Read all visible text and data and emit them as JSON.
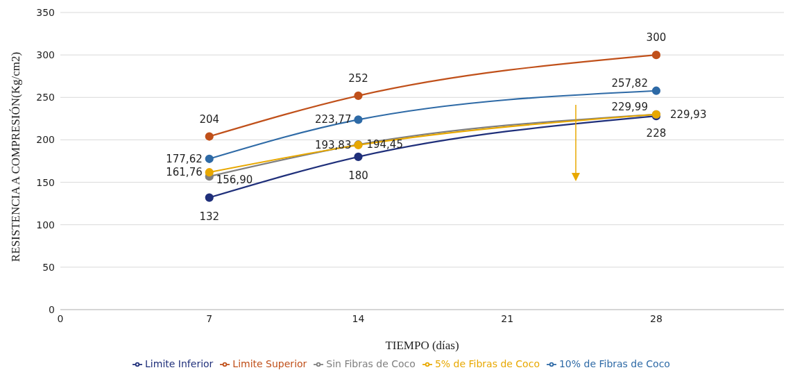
{
  "chart_data": {
    "type": "line",
    "xlabel": "TIEMPO (días)",
    "ylabel": "RESISTENCIA A COMPRESIÓN(Kg/cm2)",
    "x": [
      7,
      14,
      28
    ],
    "xlim": [
      0,
      34
    ],
    "xticks": [
      0,
      7,
      14,
      21,
      28
    ],
    "ylim": [
      0,
      350
    ],
    "yticks": [
      0,
      50,
      100,
      150,
      200,
      250,
      300,
      350
    ],
    "grid": "y",
    "legend": "bottom",
    "marker": "circle",
    "series": [
      {
        "name": "Limite Inferior",
        "color": "#1f2f7a",
        "values": [
          132,
          180,
          228
        ],
        "value_labels": [
          "132",
          "180",
          "228"
        ]
      },
      {
        "name": "Limite Superior",
        "color": "#c0501a",
        "values": [
          204,
          252,
          300
        ],
        "value_labels": [
          "204",
          "252",
          "300"
        ]
      },
      {
        "name": "Sin Fibras de Coco",
        "color": "#7f7f7f",
        "values": [
          156.9,
          194.45,
          229.93
        ],
        "value_labels": [
          "156,90",
          "194,45",
          "229,93"
        ]
      },
      {
        "name": "5% de Fibras de Coco",
        "color": "#e8a800",
        "values": [
          161.76,
          193.83,
          229.99
        ],
        "value_labels": [
          "161,76",
          "193,83",
          "229,99"
        ]
      },
      {
        "name": "10% de Fibras de Coco",
        "color": "#2e6aa6",
        "values": [
          177.62,
          223.77,
          257.82
        ],
        "value_labels": [
          "177,62",
          "223,77",
          "257,82"
        ]
      }
    ]
  }
}
